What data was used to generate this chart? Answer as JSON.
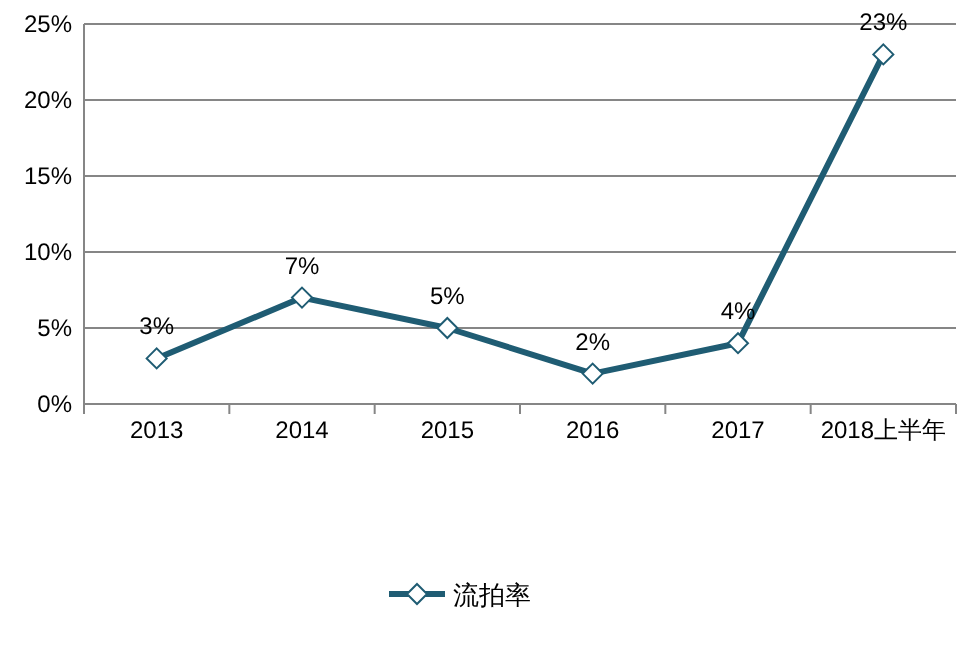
{
  "chart_data": {
    "type": "line",
    "categories": [
      "2013",
      "2014",
      "2015",
      "2016",
      "2017",
      "2018上半年"
    ],
    "series": [
      {
        "name": "流拍率",
        "color": "#1f5c73",
        "values": [
          3,
          7,
          5,
          2,
          4,
          23
        ]
      }
    ],
    "value_labels": [
      "3%",
      "7%",
      "5%",
      "2%",
      "4%",
      "23%"
    ],
    "ylim": [
      0,
      25
    ],
    "yticks": [
      {
        "value": 0,
        "label": "0%"
      },
      {
        "value": 5,
        "label": "5%"
      },
      {
        "value": 10,
        "label": "10%"
      },
      {
        "value": 15,
        "label": "15%"
      },
      {
        "value": 20,
        "label": "20%"
      },
      {
        "value": 25,
        "label": "25%"
      }
    ],
    "grid": "y",
    "legend": "bottom",
    "marker": "diamond",
    "line_style": "solid"
  }
}
